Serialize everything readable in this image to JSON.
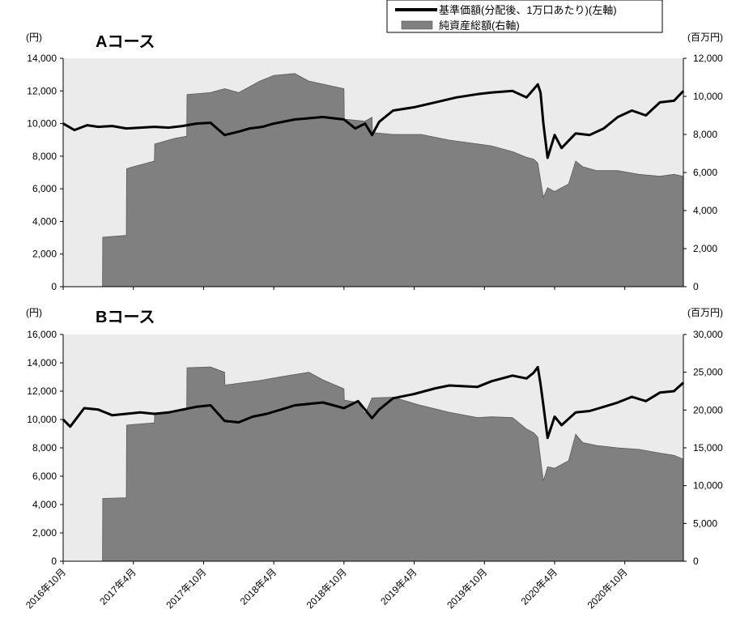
{
  "legend": {
    "nav_label": "基準価額(分配後、1万口あたり)(左軸)",
    "assets_label": "純資産総額(右軸)"
  },
  "colors": {
    "nav_line": "#000000",
    "assets_fill": "#808080",
    "plot_bg": "#ebebeb"
  },
  "x_ticks": [
    "2016年10月",
    "2017年4月",
    "2017年10月",
    "2018年4月",
    "2018年10月",
    "2019年4月",
    "2019年10月",
    "2020年4月",
    "2020年10月"
  ],
  "chart_data": [
    {
      "type": "line",
      "title": "Aコース",
      "left_unit": "(円)",
      "right_unit": "(百万円)",
      "ylim_left": [
        0,
        14000
      ],
      "yticks_left": [
        "0",
        "2,000",
        "4,000",
        "6,000",
        "8,000",
        "10,000",
        "12,000",
        "14,000"
      ],
      "ylim_right": [
        0,
        12000
      ],
      "yticks_right": [
        "0",
        "2,000",
        "4,000",
        "6,000",
        "8,000",
        "10,000",
        "12,000"
      ],
      "x_range": [
        2016.75,
        2021.167
      ],
      "series": [
        {
          "name": "基準価額(分配後、1万口あたり)(左軸)",
          "axis": "left",
          "style": "line",
          "x": [
            2016.75,
            2016.83,
            2016.92,
            2017.0,
            2017.1,
            2017.2,
            2017.3,
            2017.4,
            2017.5,
            2017.6,
            2017.7,
            2017.8,
            2017.9,
            2018.0,
            2018.08,
            2018.17,
            2018.25,
            2018.4,
            2018.6,
            2018.75,
            2018.83,
            2018.9,
            2018.95,
            2019.0,
            2019.1,
            2019.25,
            2019.4,
            2019.55,
            2019.7,
            2019.8,
            2019.95,
            2020.05,
            2020.1,
            2020.13,
            2020.15,
            2020.17,
            2020.2,
            2020.25,
            2020.3,
            2020.4,
            2020.5,
            2020.6,
            2020.7,
            2020.8,
            2020.9,
            2021.0,
            2021.1,
            2021.167
          ],
          "y": [
            10000,
            9600,
            9900,
            9800,
            9850,
            9700,
            9750,
            9800,
            9750,
            9850,
            10000,
            10050,
            9300,
            9500,
            9700,
            9800,
            10000,
            10250,
            10400,
            10250,
            9700,
            10000,
            9300,
            10100,
            10800,
            11000,
            11300,
            11600,
            11800,
            11900,
            12000,
            11600,
            12100,
            12400,
            11900,
            10000,
            7900,
            9300,
            8500,
            9400,
            9300,
            9700,
            10400,
            10800,
            10500,
            11300,
            11400,
            12000
          ]
        },
        {
          "name": "純資産総額(右軸)",
          "axis": "right",
          "style": "area",
          "x": [
            2016.75,
            2017.03,
            2017.032,
            2017.2,
            2017.202,
            2017.25,
            2017.4,
            2017.402,
            2017.55,
            2017.63,
            2017.632,
            2017.8,
            2017.9,
            2018.0,
            2018.15,
            2018.25,
            2018.4,
            2018.5,
            2018.75,
            2018.752,
            2018.9,
            2018.95,
            2018.952,
            2019.1,
            2019.3,
            2019.5,
            2019.7,
            2019.8,
            2019.95,
            2020.05,
            2020.1,
            2020.13,
            2020.17,
            2020.2,
            2020.25,
            2020.35,
            2020.4,
            2020.45,
            2020.55,
            2020.7,
            2020.85,
            2021.0,
            2021.1,
            2021.167
          ],
          "y": [
            0,
            0,
            2600,
            2700,
            6200,
            6300,
            6600,
            7500,
            7800,
            7900,
            10100,
            10200,
            10400,
            10200,
            10800,
            11100,
            11200,
            10800,
            10400,
            8800,
            8700,
            8900,
            8100,
            8000,
            8000,
            7700,
            7500,
            7400,
            7100,
            6800,
            6700,
            6500,
            4700,
            5200,
            5000,
            5400,
            6600,
            6300,
            6100,
            6100,
            5900,
            5800,
            5900,
            5800
          ]
        }
      ]
    },
    {
      "type": "line",
      "title": "Bコース",
      "left_unit": "(円)",
      "right_unit": "(百万円)",
      "ylim_left": [
        0,
        16000
      ],
      "yticks_left": [
        "0",
        "2,000",
        "4,000",
        "6,000",
        "8,000",
        "10,000",
        "12,000",
        "14,000",
        "16,000"
      ],
      "ylim_right": [
        0,
        30000
      ],
      "yticks_right": [
        "0",
        "5,000",
        "10,000",
        "15,000",
        "20,000",
        "25,000",
        "30,000"
      ],
      "x_range": [
        2016.75,
        2021.167
      ],
      "series": [
        {
          "name": "基準価額(分配後、1万口あたり)(左軸)",
          "axis": "left",
          "style": "line",
          "x": [
            2016.75,
            2016.8,
            2016.9,
            2017.0,
            2017.1,
            2017.2,
            2017.3,
            2017.4,
            2017.5,
            2017.6,
            2017.7,
            2017.8,
            2017.9,
            2018.0,
            2018.1,
            2018.2,
            2018.3,
            2018.4,
            2018.6,
            2018.75,
            2018.85,
            2018.95,
            2019.0,
            2019.1,
            2019.25,
            2019.4,
            2019.5,
            2019.7,
            2019.8,
            2019.95,
            2020.05,
            2020.1,
            2020.13,
            2020.15,
            2020.17,
            2020.2,
            2020.25,
            2020.3,
            2020.4,
            2020.5,
            2020.6,
            2020.7,
            2020.8,
            2020.9,
            2021.0,
            2021.1,
            2021.167
          ],
          "y": [
            10000,
            9500,
            10800,
            10700,
            10300,
            10400,
            10500,
            10400,
            10500,
            10700,
            10900,
            11000,
            9900,
            9800,
            10200,
            10400,
            10700,
            11000,
            11200,
            10800,
            11300,
            10100,
            10700,
            11500,
            11800,
            12200,
            12400,
            12300,
            12700,
            13100,
            12900,
            13300,
            13700,
            12500,
            11000,
            8700,
            10200,
            9600,
            10500,
            10600,
            10900,
            11200,
            11600,
            11300,
            11900,
            12000,
            12600
          ]
        },
        {
          "name": "純資産総額(右軸)",
          "axis": "right",
          "style": "area",
          "x": [
            2016.75,
            2017.03,
            2017.032,
            2017.2,
            2017.202,
            2017.25,
            2017.4,
            2017.402,
            2017.55,
            2017.63,
            2017.632,
            2017.8,
            2017.9,
            2017.902,
            2018.15,
            2018.3,
            2018.5,
            2018.6,
            2018.75,
            2018.752,
            2018.85,
            2018.9,
            2018.95,
            2019.1,
            2019.3,
            2019.5,
            2019.7,
            2019.8,
            2019.95,
            2020.05,
            2020.1,
            2020.13,
            2020.17,
            2020.2,
            2020.25,
            2020.35,
            2020.4,
            2020.45,
            2020.55,
            2020.7,
            2020.85,
            2021.0,
            2021.1,
            2021.167
          ],
          "y": [
            0,
            0,
            8300,
            8400,
            18000,
            18100,
            18300,
            19500,
            19800,
            20000,
            25600,
            25700,
            25000,
            23300,
            23900,
            24400,
            25000,
            24000,
            22800,
            21300,
            21000,
            19500,
            21600,
            21700,
            20600,
            19700,
            19000,
            19100,
            19000,
            17500,
            17000,
            16400,
            10600,
            12500,
            12300,
            13300,
            16800,
            15700,
            15300,
            15000,
            14800,
            14300,
            14000,
            13500
          ]
        }
      ]
    }
  ]
}
